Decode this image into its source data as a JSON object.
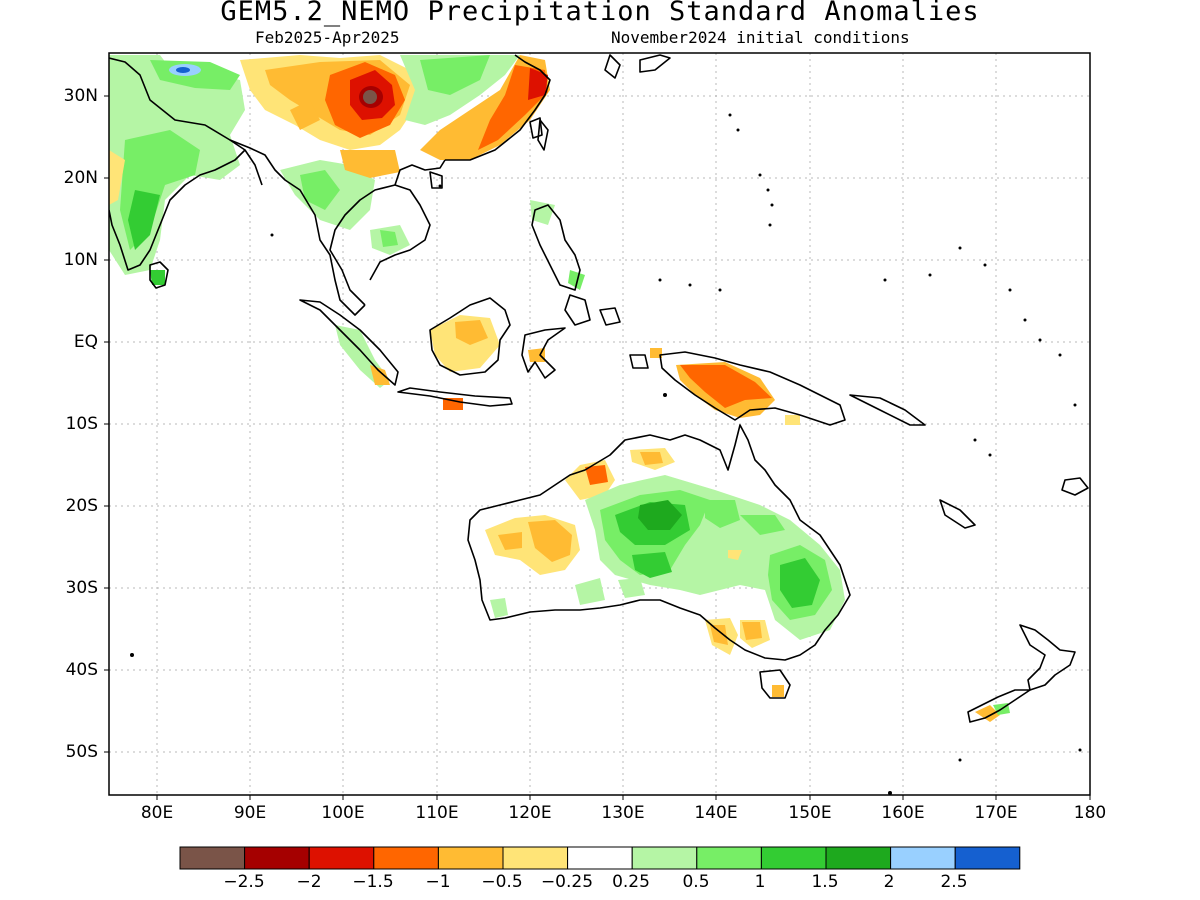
{
  "header": {
    "title": "GEM5.2_NEMO Precipitation Standard Anomalies",
    "period": "Feb2025-Apr2025",
    "init": "November2024 initial conditions"
  },
  "axes": {
    "lat_labels": [
      "30N",
      "20N",
      "10N",
      "EQ",
      "10S",
      "20S",
      "30S",
      "40S",
      "50S"
    ],
    "lon_labels": [
      "80E",
      "90E",
      "100E",
      "110E",
      "120E",
      "130E",
      "140E",
      "150E",
      "160E",
      "170E",
      "180"
    ]
  },
  "colorbar": {
    "colors": [
      "#7a5448",
      "#a50000",
      "#dd1100",
      "#ff6600",
      "#ffbb33",
      "#ffe477",
      "#ffffff",
      "#b5f5a5",
      "#77ee66",
      "#33cc33",
      "#1ea91e",
      "#99d0ff",
      "#1560d0"
    ],
    "labels": [
      "-2.5",
      "-2",
      "-1.5",
      "-1",
      "-0.5",
      "-0.25",
      "0.25",
      "0.5",
      "1",
      "1.5",
      "2",
      "2.5"
    ]
  }
}
